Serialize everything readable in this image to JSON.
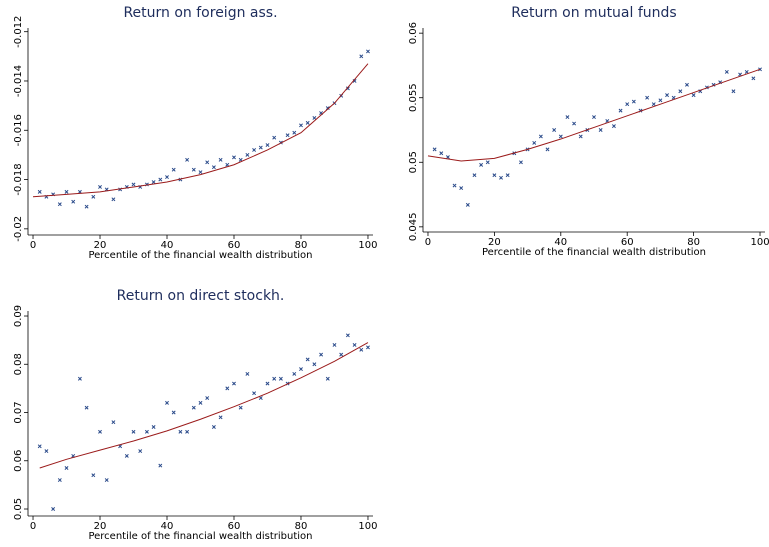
{
  "chart_data": [
    {
      "type": "scatter",
      "title": "Return on foreign ass.",
      "xlabel": "Percentile of the financial wealth distribution",
      "x": [
        2,
        4,
        6,
        8,
        10,
        12,
        14,
        16,
        18,
        20,
        22,
        24,
        26,
        28,
        30,
        32,
        34,
        36,
        38,
        40,
        42,
        44,
        46,
        48,
        50,
        52,
        54,
        56,
        58,
        60,
        62,
        64,
        66,
        68,
        70,
        72,
        74,
        76,
        78,
        80,
        82,
        84,
        86,
        88,
        90,
        92,
        94,
        96,
        98,
        100
      ],
      "series": [
        {
          "color": "#2a4a8a",
          "values": [
            -0.0185,
            -0.0187,
            -0.0186,
            -0.019,
            -0.0185,
            -0.0189,
            -0.0185,
            -0.0191,
            -0.0187,
            -0.0183,
            -0.0184,
            -0.0188,
            -0.0184,
            -0.0183,
            -0.0182,
            -0.0183,
            -0.0182,
            -0.0181,
            -0.018,
            -0.0179,
            -0.0176,
            -0.018,
            -0.0172,
            -0.0176,
            -0.0177,
            -0.0173,
            -0.0175,
            -0.0172,
            -0.0174,
            -0.0171,
            -0.0172,
            -0.017,
            -0.0168,
            -0.0167,
            -0.0166,
            -0.0163,
            -0.0165,
            -0.0162,
            -0.0161,
            -0.0158,
            -0.0157,
            -0.0155,
            -0.0153,
            -0.0151,
            -0.0149,
            -0.0146,
            -0.0143,
            -0.014,
            -0.013,
            -0.0128
          ]
        }
      ],
      "fit": {
        "color": "#9b1b1b",
        "x": [
          0,
          10,
          20,
          30,
          40,
          50,
          60,
          70,
          80,
          90,
          100
        ],
        "values": [
          -0.0187,
          -0.0186,
          -0.0185,
          -0.0183,
          -0.0181,
          -0.0178,
          -0.0174,
          -0.0168,
          -0.0161,
          -0.0149,
          -0.0133
        ]
      },
      "xlim": [
        -1.5,
        101.5
      ],
      "xticks": [
        0,
        20,
        40,
        60,
        80,
        100
      ],
      "ylim": [
        -0.02025,
        -0.01185
      ],
      "yticks": [
        -0.02,
        -0.018,
        -0.016,
        -0.014,
        -0.012
      ]
    },
    {
      "type": "scatter",
      "title": "Return on mutual funds",
      "xlabel": "Percentile of the financial wealth distribution",
      "x": [
        2,
        4,
        6,
        8,
        10,
        12,
        14,
        16,
        18,
        20,
        22,
        24,
        26,
        28,
        30,
        32,
        34,
        36,
        38,
        40,
        42,
        44,
        46,
        48,
        50,
        52,
        54,
        56,
        58,
        60,
        62,
        64,
        66,
        68,
        70,
        72,
        74,
        76,
        78,
        80,
        82,
        84,
        86,
        88,
        90,
        92,
        94,
        96,
        98,
        100
      ],
      "series": [
        {
          "color": "#2a4a8a",
          "values": [
            0.051,
            0.0507,
            0.0504,
            0.0482,
            0.048,
            0.0467,
            0.049,
            0.0498,
            0.05,
            0.049,
            0.0488,
            0.049,
            0.0507,
            0.05,
            0.051,
            0.0515,
            0.052,
            0.051,
            0.0525,
            0.052,
            0.0535,
            0.053,
            0.052,
            0.0525,
            0.0535,
            0.0525,
            0.0532,
            0.0528,
            0.054,
            0.0545,
            0.0547,
            0.054,
            0.055,
            0.0545,
            0.0548,
            0.0552,
            0.055,
            0.0555,
            0.056,
            0.0552,
            0.0555,
            0.0558,
            0.056,
            0.0562,
            0.057,
            0.0555,
            0.0568,
            0.057,
            0.0565,
            0.0572
          ]
        }
      ],
      "fit": {
        "color": "#9b1b1b",
        "x": [
          0,
          10,
          20,
          30,
          40,
          50,
          60,
          70,
          80,
          90,
          100
        ],
        "values": [
          0.0505,
          0.0501,
          0.0503,
          0.051,
          0.0518,
          0.0527,
          0.0536,
          0.0545,
          0.0554,
          0.0563,
          0.0572
        ]
      },
      "xlim": [
        -1.5,
        101.5
      ],
      "xticks": [
        0,
        20,
        40,
        60,
        80,
        100
      ],
      "ylim": [
        0.0446,
        0.0604
      ],
      "yticks": [
        0.045,
        0.05,
        0.055,
        0.06
      ]
    },
    {
      "type": "scatter",
      "title": "Return on direct stockh.",
      "xlabel": "Percentile of the financial wealth distribution",
      "x": [
        2,
        4,
        6,
        8,
        10,
        12,
        14,
        16,
        18,
        20,
        22,
        24,
        26,
        28,
        30,
        32,
        34,
        36,
        38,
        40,
        42,
        44,
        46,
        48,
        50,
        52,
        54,
        56,
        58,
        60,
        62,
        64,
        66,
        68,
        70,
        72,
        74,
        76,
        78,
        80,
        82,
        84,
        86,
        88,
        90,
        92,
        94,
        96,
        98,
        100
      ],
      "series": [
        {
          "color": "#2a4a8a",
          "values": [
            0.063,
            0.062,
            0.05,
            0.056,
            0.0585,
            0.061,
            0.077,
            0.071,
            0.057,
            0.066,
            0.056,
            0.068,
            0.063,
            0.061,
            0.066,
            0.062,
            0.066,
            0.067,
            0.059,
            0.072,
            0.07,
            0.066,
            0.066,
            0.071,
            0.072,
            0.073,
            0.067,
            0.069,
            0.075,
            0.076,
            0.071,
            0.078,
            0.074,
            0.073,
            0.076,
            0.077,
            0.077,
            0.076,
            0.078,
            0.079,
            0.081,
            0.08,
            0.082,
            0.077,
            0.084,
            0.082,
            0.086,
            0.084,
            0.083,
            0.0835
          ]
        }
      ],
      "fit": {
        "color": "#9b1b1b",
        "x": [
          2,
          10,
          20,
          30,
          40,
          50,
          60,
          70,
          80,
          90,
          100
        ],
        "values": [
          0.0585,
          0.0603,
          0.0622,
          0.0641,
          0.0662,
          0.0686,
          0.0712,
          0.074,
          0.0772,
          0.0806,
          0.0845
        ]
      },
      "xlim": [
        -1.5,
        101.5
      ],
      "xticks": [
        0,
        20,
        40,
        60,
        80,
        100
      ],
      "ylim": [
        0.04855,
        0.09104
      ],
      "yticks": [
        0.05,
        0.06,
        0.07,
        0.08,
        0.09
      ]
    }
  ]
}
